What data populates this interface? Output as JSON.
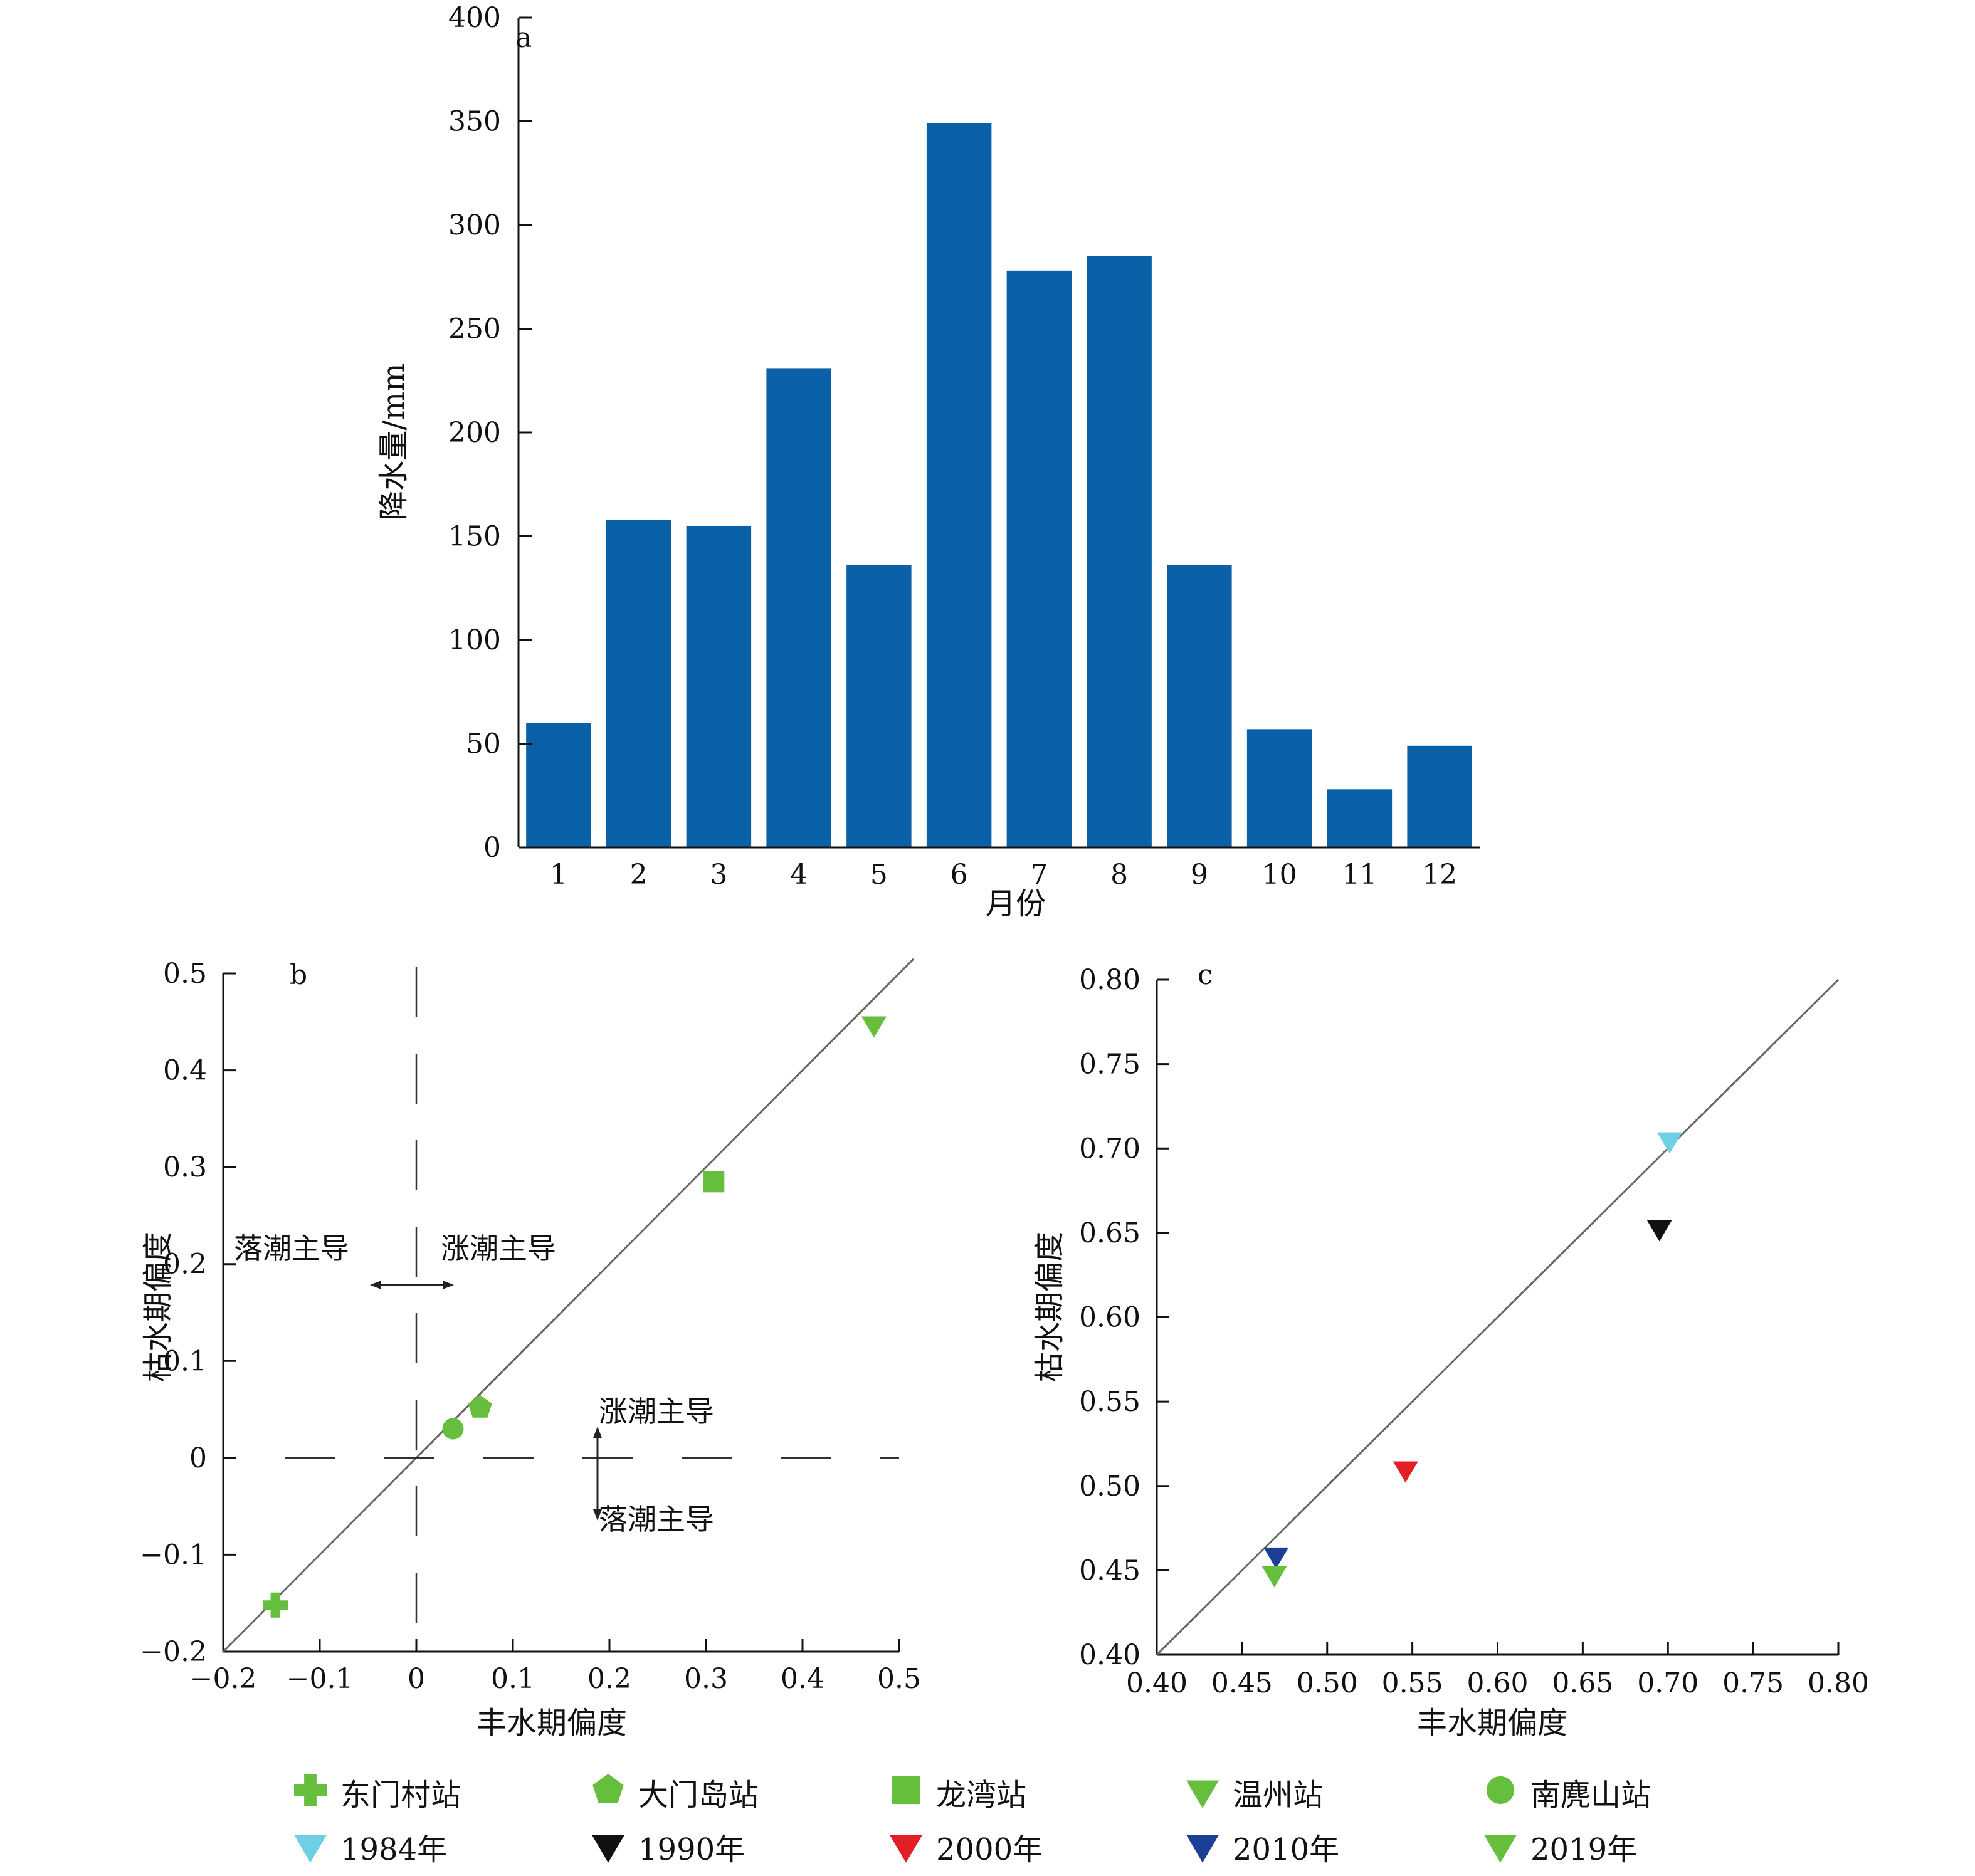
{
  "chart_data": [
    {
      "panel": "a",
      "type": "bar",
      "xlabel": "月份",
      "ylabel": "降水量/mm",
      "categories": [
        "1",
        "2",
        "3",
        "4",
        "5",
        "6",
        "7",
        "8",
        "9",
        "10",
        "11",
        "12"
      ],
      "values": [
        60,
        158,
        155,
        231,
        136,
        349,
        278,
        285,
        136,
        57,
        28,
        49
      ],
      "ylim": [
        0,
        400
      ],
      "yticks": [
        0,
        50,
        100,
        150,
        200,
        250,
        300,
        350,
        400
      ],
      "bar_color": "#0a61a8"
    },
    {
      "panel": "b",
      "type": "scatter",
      "xlabel": "丰水期偏度",
      "ylabel": "枯水期偏度",
      "xlim": [
        -0.2,
        0.5
      ],
      "ylim": [
        -0.2,
        0.5
      ],
      "xticks": [
        "−0.2",
        "−0.1",
        "0",
        "0.1",
        "0.2",
        "0.3",
        "0.4",
        "0.5"
      ],
      "yticks": [
        "−0.2",
        "−0.1",
        "0",
        "0.1",
        "0.2",
        "0.3",
        "0.4",
        "0.5"
      ],
      "diagonal": true,
      "annotations": {
        "left_top": "落潮主导",
        "right_top": "涨潮主导",
        "upper_right": "涨潮主导",
        "lower_right": "落潮主导"
      },
      "points": [
        {
          "name": "东门村站",
          "marker": "plus",
          "color": "#66bf3c",
          "x": -0.146,
          "y": -0.152
        },
        {
          "name": "南麂山站",
          "marker": "circle",
          "color": "#66bf3c",
          "x": 0.038,
          "y": 0.03
        },
        {
          "name": "大门岛站",
          "marker": "pentagon",
          "color": "#66bf3c",
          "x": 0.066,
          "y": 0.052
        },
        {
          "name": "龙湾站",
          "marker": "square",
          "color": "#66bf3c",
          "x": 0.308,
          "y": 0.285
        },
        {
          "name": "温州站",
          "marker": "triangle-down",
          "color": "#66bf3c",
          "x": 0.474,
          "y": 0.446
        }
      ]
    },
    {
      "panel": "c",
      "type": "scatter",
      "xlabel": "丰水期偏度",
      "ylabel": "枯水期偏度",
      "xlim": [
        0.4,
        0.8
      ],
      "ylim": [
        0.4,
        0.8
      ],
      "xticks": [
        "0.40",
        "0.45",
        "0.50",
        "0.55",
        "0.60",
        "0.65",
        "0.70",
        "0.75",
        "0.80"
      ],
      "yticks": [
        "0.40",
        "0.45",
        "0.50",
        "0.55",
        "0.60",
        "0.65",
        "0.70",
        "0.75",
        "0.80"
      ],
      "diagonal": true,
      "points": [
        {
          "name": "1984年",
          "marker": "triangle-down",
          "color": "#6fcfe3",
          "x": 0.701,
          "y": 0.704
        },
        {
          "name": "1990年",
          "marker": "triangle-down",
          "color": "#111111",
          "x": 0.695,
          "y": 0.652
        },
        {
          "name": "2000年",
          "marker": "triangle-down",
          "color": "#e21f26",
          "x": 0.546,
          "y": 0.509
        },
        {
          "name": "2010年",
          "marker": "triangle-down",
          "color": "#1a3f95",
          "x": 0.47,
          "y": 0.458
        },
        {
          "name": "2019年",
          "marker": "triangle-down",
          "color": "#66bf3c",
          "x": 0.469,
          "y": 0.447
        }
      ]
    }
  ],
  "legend": {
    "row1": [
      {
        "label": "东门村站",
        "marker": "plus",
        "color": "#66bf3c"
      },
      {
        "label": "大门岛站",
        "marker": "pentagon",
        "color": "#66bf3c"
      },
      {
        "label": "龙湾站",
        "marker": "square",
        "color": "#66bf3c"
      },
      {
        "label": "温州站",
        "marker": "triangle-down",
        "color": "#66bf3c"
      },
      {
        "label": "南麂山站",
        "marker": "circle",
        "color": "#66bf3c"
      }
    ],
    "row2": [
      {
        "label": "1984年",
        "marker": "triangle-down",
        "color": "#6fcfe3"
      },
      {
        "label": "1990年",
        "marker": "triangle-down",
        "color": "#111111"
      },
      {
        "label": "2000年",
        "marker": "triangle-down",
        "color": "#e21f26"
      },
      {
        "label": "2010年",
        "marker": "triangle-down",
        "color": "#1a3f95"
      },
      {
        "label": "2019年",
        "marker": "triangle-down",
        "color": "#66bf3c"
      }
    ]
  }
}
